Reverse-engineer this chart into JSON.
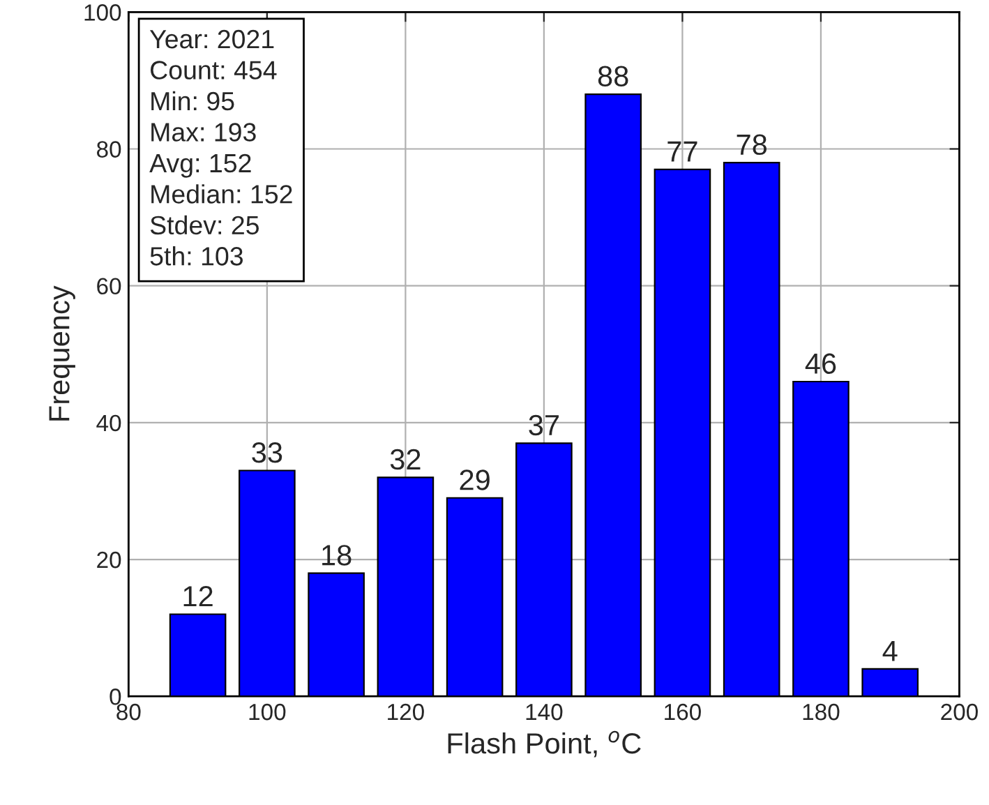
{
  "chart_data": {
    "type": "histogram",
    "xlabel": "Flash Point, $^{o}$C",
    "ylabel": "Frequency",
    "bins": [
      85,
      95,
      105,
      115,
      125,
      135,
      145,
      155,
      165,
      175,
      185,
      195
    ],
    "values": [
      12,
      33,
      18,
      32,
      29,
      37,
      88,
      77,
      78,
      46,
      4
    ],
    "color": "#0000ff",
    "data_labels": true,
    "xlim": [
      80,
      200
    ],
    "xticks": [
      80,
      100,
      120,
      140,
      160,
      180,
      200
    ],
    "ylim": [
      0,
      100
    ],
    "yticks": [
      0,
      20,
      40,
      60,
      80,
      100
    ],
    "grid": true,
    "annotations": [
      "Year: 2021",
      "Count: 454",
      "Min: 95",
      "Max: 193",
      "Avg: 152",
      "Median: 152",
      "Stdev: 25",
      "5th: 103"
    ]
  }
}
